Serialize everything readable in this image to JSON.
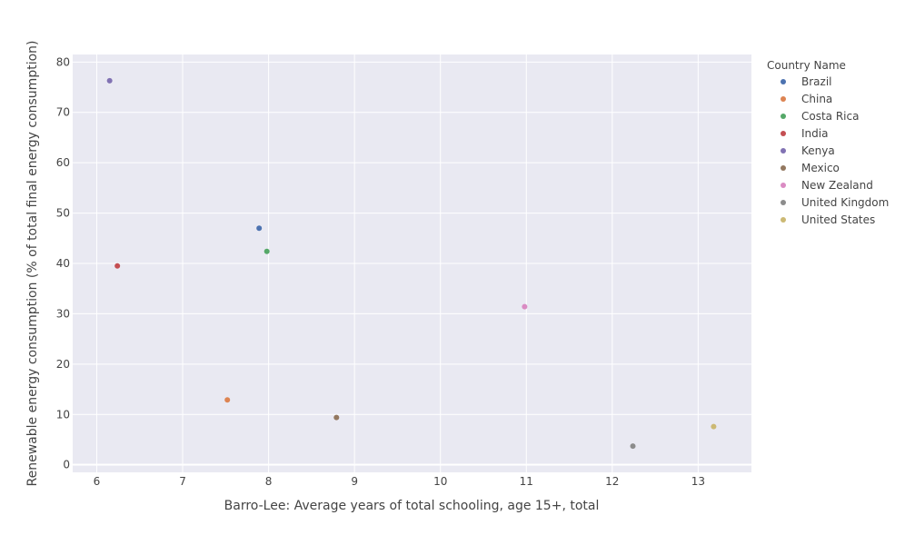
{
  "chart_data": {
    "type": "scatter",
    "xlabel": "Barro-Lee: Average years of total schooling, age 15+, total",
    "ylabel": "Renewable energy consumption (% of total final energy consumption)",
    "xlim": [
      5.72,
      13.62
    ],
    "ylim": [
      -1.5,
      81.5
    ],
    "xticks": [
      6,
      7,
      8,
      9,
      10,
      11,
      12,
      13
    ],
    "yticks": [
      0,
      10,
      20,
      30,
      40,
      50,
      60,
      70,
      80
    ],
    "grid": true,
    "legend_title": "Country Name",
    "legend_position": "right",
    "background_color": "#e9e9f2",
    "series": [
      {
        "name": "Brazil",
        "color": "#4c72b0",
        "x": [
          7.89
        ],
        "y": [
          47.0
        ]
      },
      {
        "name": "China",
        "color": "#dd8452",
        "x": [
          7.52
        ],
        "y": [
          12.9
        ]
      },
      {
        "name": "Costa Rica",
        "color": "#55a868",
        "x": [
          7.98
        ],
        "y": [
          42.4
        ]
      },
      {
        "name": "India",
        "color": "#c44e52",
        "x": [
          6.24
        ],
        "y": [
          39.5
        ]
      },
      {
        "name": "Kenya",
        "color": "#8172b3",
        "x": [
          6.15
        ],
        "y": [
          76.3
        ]
      },
      {
        "name": "Mexico",
        "color": "#937860",
        "x": [
          8.79
        ],
        "y": [
          9.4
        ]
      },
      {
        "name": "New Zealand",
        "color": "#da8bc3",
        "x": [
          10.98
        ],
        "y": [
          31.4
        ]
      },
      {
        "name": "United Kingdom",
        "color": "#8c8c8c",
        "x": [
          12.24
        ],
        "y": [
          3.7
        ]
      },
      {
        "name": "United States",
        "color": "#ccb974",
        "x": [
          13.18
        ],
        "y": [
          7.6
        ]
      }
    ]
  }
}
